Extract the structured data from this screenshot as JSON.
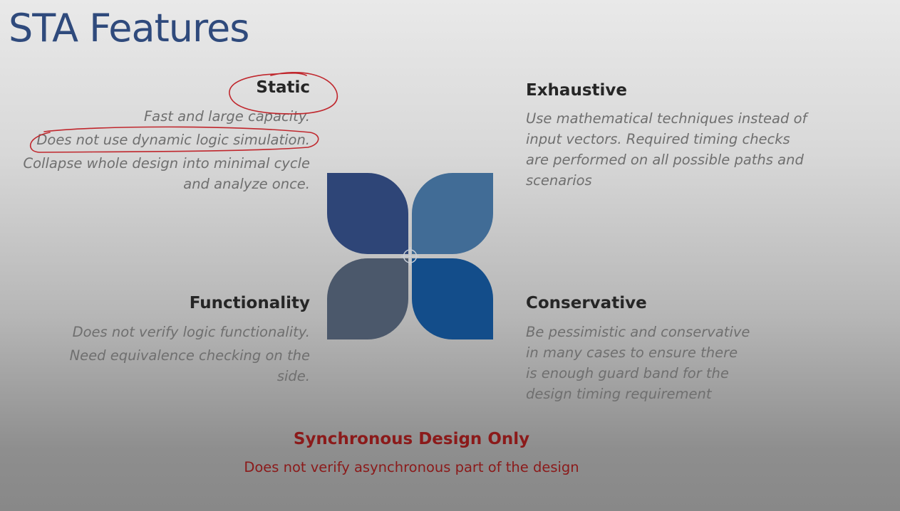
{
  "slide": {
    "title": "STA Features"
  },
  "static_block": {
    "heading": "Static",
    "lines": [
      "Fast and large capacity.",
      "Does not use dynamic logic simulation.",
      "Collapse whole design into minimal cycle",
      "and analyze once."
    ]
  },
  "exhaustive_block": {
    "heading": "Exhaustive",
    "lines": [
      "Use mathematical techniques instead of",
      "input vectors. Required timing checks",
      "are performed on all possible paths and",
      "scenarios"
    ]
  },
  "functionality_block": {
    "heading": "Functionality",
    "lines": [
      "Does not verify logic functionality.",
      "Need equivalence checking on the",
      "side."
    ]
  },
  "conservative_block": {
    "heading": "Conservative",
    "lines": [
      "Be pessimistic and conservative",
      "in many cases to ensure there",
      "is enough guard band for the",
      "design timing requirement"
    ]
  },
  "sync_block": {
    "heading": "Synchronous Design Only",
    "body": "Does not verify asynchronous part of the design"
  },
  "colors": {
    "title": "#2f4a7c",
    "petal_top_left": "#2e4577",
    "petal_top_right": "#416c96",
    "petal_bottom_left": "#4b586b",
    "petal_bottom_right": "#134d8a",
    "annotation_ink": "#c0272d",
    "emphasis_red": "#8b1a1a"
  }
}
